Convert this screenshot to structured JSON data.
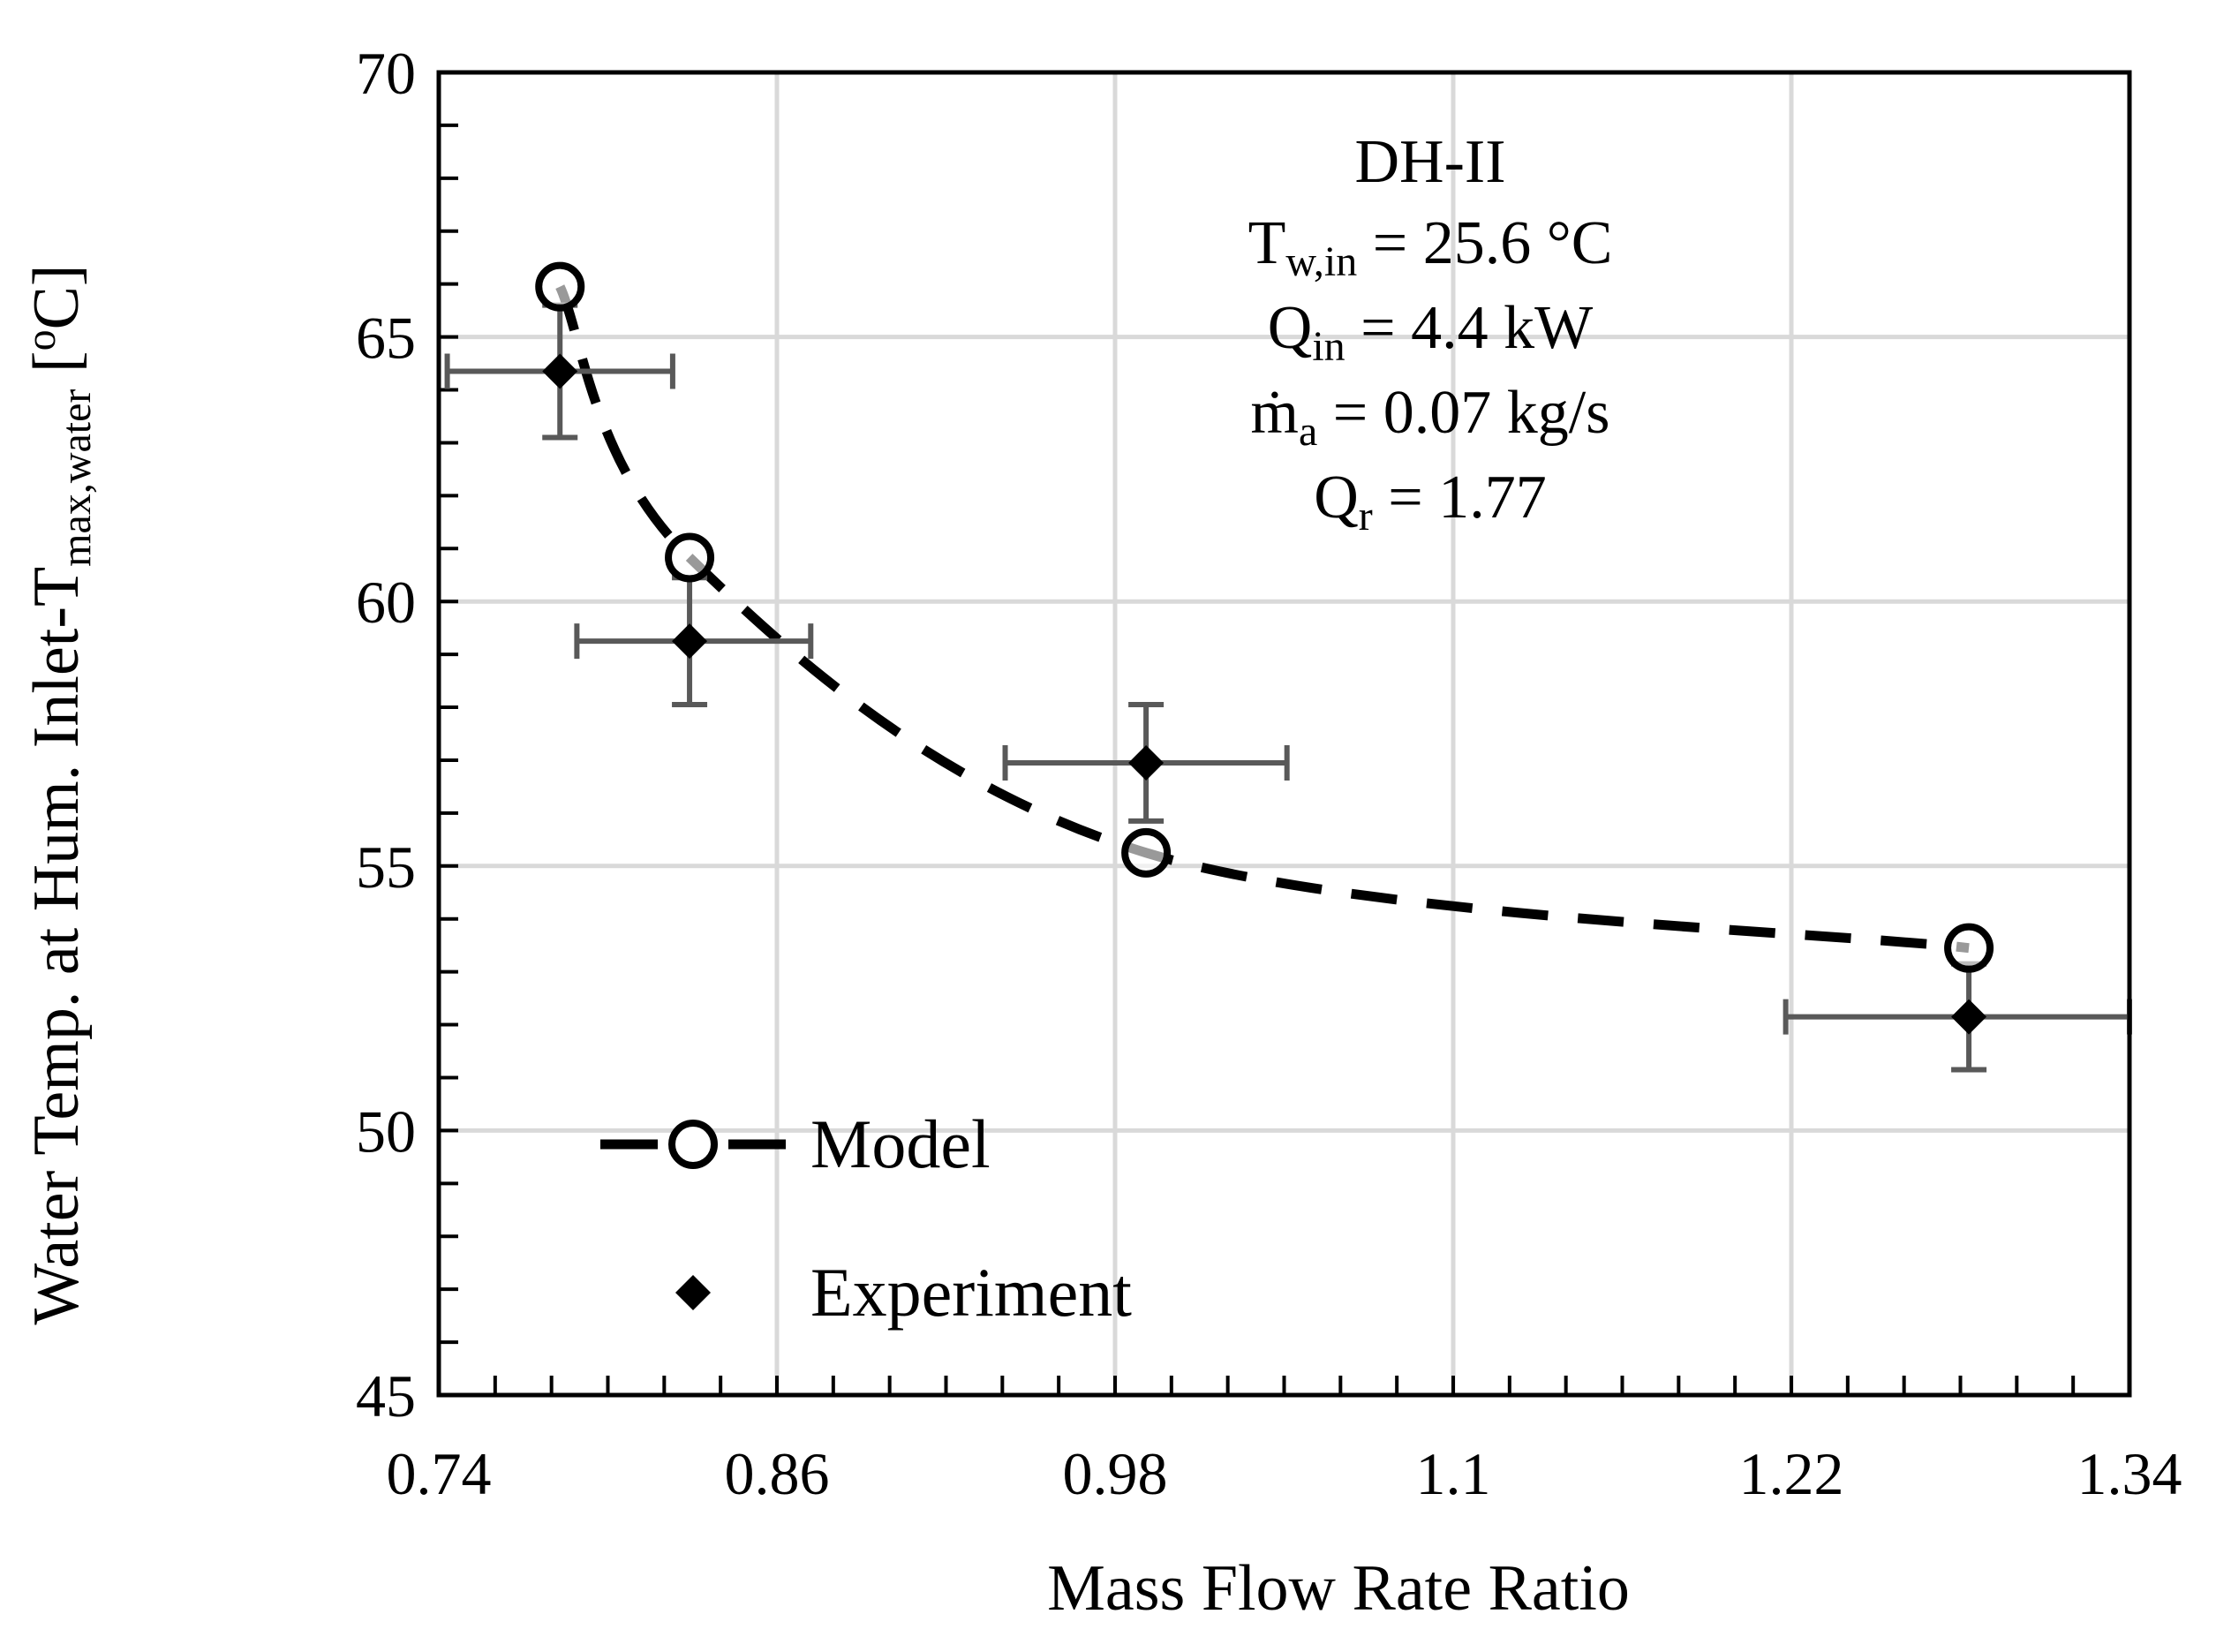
{
  "chart_data": {
    "type": "scatter",
    "title": "",
    "xlabel": "Mass Flow Rate Ratio",
    "ylabel": {
      "main": "Water Temp. at Hum. Inlet-T",
      "sub": "max,water",
      "unit": "[oC]",
      "unit_pre": "[",
      "unit_sup": "o",
      "unit_post": "C]"
    },
    "xlim": [
      0.74,
      1.34
    ],
    "ylim": [
      45,
      70
    ],
    "x_ticks": [
      "0.74",
      "0.86",
      "0.98",
      "1.1",
      "1.22",
      "1.34"
    ],
    "y_ticks": [
      "45",
      "50",
      "55",
      "60",
      "65",
      "70"
    ],
    "grid": true,
    "series": [
      {
        "name": "Model",
        "style": "dashed-line-open-circle",
        "x": [
          0.783,
          0.829,
          0.991,
          1.283
        ],
        "y": [
          65.95,
          60.83,
          55.25,
          53.45
        ]
      },
      {
        "name": "Experiment",
        "style": "filled-diamond-with-error-bars",
        "x": [
          0.783,
          0.829,
          0.991,
          1.283
        ],
        "y": [
          64.35,
          59.25,
          56.95,
          52.15
        ],
        "x_err_low": [
          0.04,
          0.04,
          0.05,
          0.065
        ],
        "x_err_high": [
          0.04,
          0.043,
          0.05,
          0.058
        ],
        "y_err": [
          1.25,
          1.2,
          1.1,
          1.0
        ]
      }
    ],
    "legend": {
      "position": "bottom-left",
      "entries": [
        "Model",
        "Experiment"
      ]
    },
    "annotation": {
      "line1": "DH-II",
      "t_main": "T",
      "t_sub": "w,in",
      "t_rest": " = 25.6 °C",
      "q_main": "Q",
      "q_sub": "in",
      "q_rest": " = 4.4 kW",
      "m_main": "ṁ",
      "m_sub": "a",
      "m_rest": " = 0.07 kg/s",
      "qr_main": "Q",
      "qr_sub": "r",
      "qr_rest": " = 1.77"
    }
  },
  "colors": {
    "grid": "#d9d9d9",
    "axis": "#000000",
    "error_bar": "#595959",
    "marker": "#000000"
  }
}
